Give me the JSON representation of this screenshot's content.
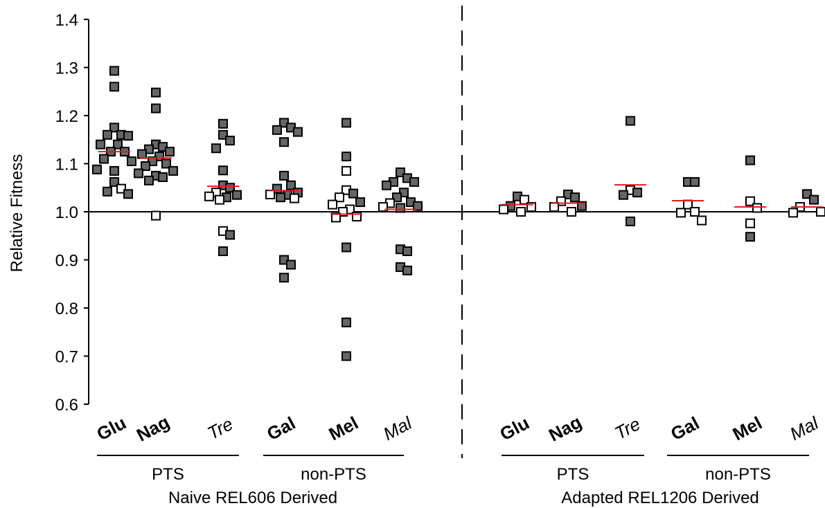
{
  "chart_data": {
    "type": "scatter",
    "title": "",
    "ylabel": "Relative Fitness",
    "ylim": [
      0.6,
      1.4
    ],
    "yticks": [
      "0.6",
      "0.7",
      "0.8",
      "0.9",
      "1.0",
      "1.1",
      "1.2",
      "1.3",
      "1.4"
    ],
    "reference_line": 1.0,
    "divider": "dashed vertical line between panels",
    "legend": "none",
    "marker_colors": {
      "filled": "#666666",
      "open": "#ffffff",
      "edge": "#000000",
      "mean": "#e41a1c"
    },
    "panels": [
      {
        "title": "Naive REL606 Derived",
        "groups": [
          {
            "label": "PTS",
            "categories": [
              "Glu",
              "Nag",
              "Tre"
            ]
          },
          {
            "label": "non-PTS",
            "categories": [
              "Gal",
              "Mel",
              "Mal"
            ]
          }
        ],
        "categories": [
          {
            "name": "Glu",
            "style": "bold",
            "mean": 1.125,
            "filled": [
              1.293,
              1.26,
              1.16,
              1.16,
              1.158,
              1.175,
              1.14,
              1.14,
              1.125,
              1.125,
              1.105,
              1.11,
              1.088,
              1.085,
              1.062,
              1.042,
              1.037
            ],
            "open": [
              1.048
            ]
          },
          {
            "name": "Nag",
            "style": "bold",
            "mean": 1.112,
            "filled": [
              1.248,
              1.215,
              1.14,
              1.135,
              1.13,
              1.125,
              1.12,
              1.115,
              1.105,
              1.1,
              1.095,
              1.085,
              1.08,
              1.075,
              1.072,
              1.065
            ],
            "open": [
              0.992
            ]
          },
          {
            "name": "Tre",
            "style": "italic",
            "mean": 1.053,
            "filled": [
              1.183,
              1.16,
              1.148,
              1.132,
              1.086,
              1.055,
              1.05,
              1.035,
              1.03,
              0.952,
              0.918
            ],
            "open": [
              1.04,
              1.032,
              1.025,
              0.96
            ]
          },
          {
            "name": "Gal",
            "style": "bold",
            "mean": 1.044,
            "filled": [
              1.185,
              1.175,
              1.17,
              1.166,
              1.145,
              1.075,
              1.055,
              1.048,
              1.04,
              1.035,
              1.03,
              0.9,
              0.89,
              0.863
            ],
            "open": [
              1.036,
              1.028
            ]
          },
          {
            "name": "Mel",
            "style": "bold",
            "mean": 0.995,
            "filled": [
              1.185,
              1.115,
              1.038,
              1.02,
              0.926,
              0.77,
              0.7
            ],
            "open": [
              1.085,
              1.045,
              1.03,
              1.015,
              1.005,
              1.0,
              0.99,
              0.988
            ]
          },
          {
            "name": "Mal",
            "style": "italic",
            "mean": 1.005,
            "filled": [
              1.082,
              1.07,
              1.062,
              1.062,
              1.055,
              1.04,
              1.03,
              1.02,
              1.012,
              1.008,
              0.922,
              0.918,
              0.885,
              0.878
            ],
            "open": [
              1.018,
              1.01
            ]
          }
        ]
      },
      {
        "title": "Adapted REL1206 Derived",
        "groups": [
          {
            "label": "PTS",
            "categories": [
              "Glu",
              "Nag",
              "Tre"
            ]
          },
          {
            "label": "non-PTS",
            "categories": [
              "Gal",
              "Mel",
              "Mal"
            ]
          }
        ],
        "categories": [
          {
            "name": "Glu",
            "style": "bold",
            "mean": 1.015,
            "filled": [
              1.032,
              1.012
            ],
            "open": [
              1.025,
              1.01,
              1.005,
              1.0
            ]
          },
          {
            "name": "Nag",
            "style": "bold",
            "mean": 1.018,
            "filled": [
              1.036,
              1.03,
              1.012
            ],
            "open": [
              1.022,
              1.01,
              1.0
            ]
          },
          {
            "name": "Tre",
            "style": "italic",
            "mean": 1.056,
            "filled": [
              1.189,
              1.04,
              1.035,
              0.98
            ],
            "open": [
              1.045
            ]
          },
          {
            "name": "Gal",
            "style": "bold",
            "mean": 1.023,
            "filled": [
              1.062,
              1.062
            ],
            "open": [
              1.015,
              1.0,
              0.998,
              0.982
            ]
          },
          {
            "name": "Mel",
            "style": "bold",
            "mean": 1.01,
            "filled": [
              1.107,
              0.948
            ],
            "open": [
              1.022,
              1.008,
              0.976
            ]
          },
          {
            "name": "Mal",
            "style": "italic",
            "mean": 1.01,
            "filled": [
              1.037,
              1.025
            ],
            "open": [
              1.01,
              1.0,
              0.998
            ]
          }
        ]
      }
    ]
  }
}
